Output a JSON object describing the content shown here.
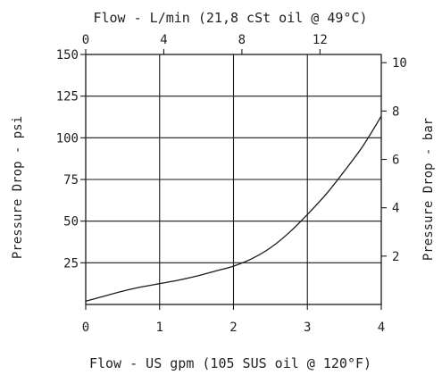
{
  "chart_data": {
    "type": "line",
    "title": "",
    "xlabel": "Flow - US gpm (105 SUS oil @ 120°F)",
    "x2label": "Flow - L/min (21,8 cSt oil @ 49°C)",
    "ylabel": "Pressure Drop - psi",
    "y2label": "Pressure Drop - bar",
    "xlim": [
      0,
      4
    ],
    "ylim": [
      0,
      150
    ],
    "x2lim": [
      0,
      15.14
    ],
    "y2lim": [
      0,
      10.34
    ],
    "x_ticks": [
      0,
      1,
      2,
      3,
      4
    ],
    "y_ticks": [
      25,
      50,
      75,
      100,
      125,
      150
    ],
    "x2_ticks": [
      0,
      4,
      8,
      12
    ],
    "y2_ticks": [
      2,
      4,
      6,
      8,
      10
    ],
    "grid": true,
    "legend": "none",
    "series": [
      {
        "x": [
          0,
          0.25,
          0.5,
          0.75,
          1.0,
          1.25,
          1.5,
          1.75,
          2.0,
          2.25,
          2.5,
          2.75,
          3.0,
          3.25,
          3.5,
          3.75,
          4.0
        ],
        "values": [
          2,
          5,
          8,
          10.5,
          12.5,
          14.5,
          17,
          20,
          23,
          27.5,
          34,
          43,
          54,
          66,
          80,
          95,
          113
        ]
      }
    ]
  }
}
